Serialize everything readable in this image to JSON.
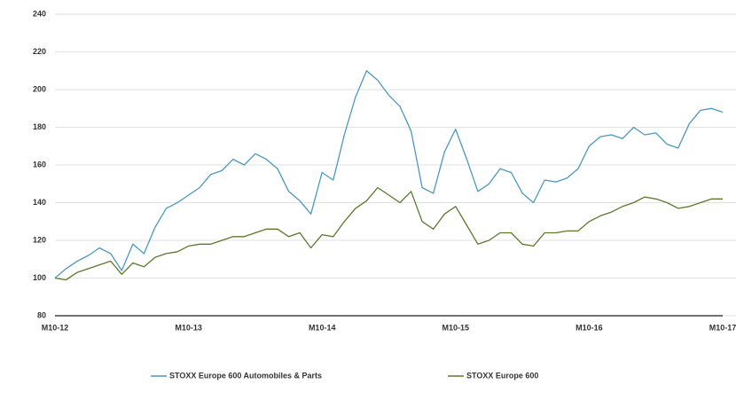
{
  "chart_data": {
    "type": "line",
    "categories": [
      "M10-12",
      null,
      null,
      null,
      null,
      null,
      null,
      null,
      null,
      null,
      null,
      null,
      "M10-13",
      null,
      null,
      null,
      null,
      null,
      null,
      null,
      null,
      null,
      null,
      null,
      "M10-14",
      null,
      null,
      null,
      null,
      null,
      null,
      null,
      null,
      null,
      null,
      null,
      "M10-15",
      null,
      null,
      null,
      null,
      null,
      null,
      null,
      null,
      null,
      null,
      null,
      "M10-16",
      null,
      null,
      null,
      null,
      null,
      null,
      null,
      null,
      null,
      null,
      null,
      "M10-17"
    ],
    "series": [
      {
        "name": "STOXX Europe 600 Automobiles & Parts",
        "color": "#4a98c0",
        "values": [
          100,
          105,
          109,
          112,
          116,
          113,
          104,
          118,
          113,
          127,
          137,
          140,
          144,
          148,
          155,
          157,
          163,
          160,
          166,
          163,
          158,
          146,
          141,
          134,
          156,
          152,
          176,
          196,
          210,
          205,
          197,
          191,
          178,
          148,
          145,
          167,
          179,
          163,
          146,
          150,
          158,
          156,
          145,
          140,
          152,
          151,
          153,
          158,
          170,
          175,
          176,
          174,
          180,
          176,
          177,
          171,
          169,
          182,
          189,
          190,
          188
        ]
      },
      {
        "name": "STOXX Europe 600",
        "color": "#5a7a2a",
        "values": [
          100,
          99,
          103,
          105,
          107,
          109,
          102,
          108,
          106,
          111,
          113,
          114,
          117,
          118,
          118,
          120,
          122,
          122,
          124,
          126,
          126,
          122,
          124,
          116,
          123,
          122,
          130,
          137,
          141,
          148,
          144,
          140,
          146,
          130,
          126,
          134,
          138,
          128,
          118,
          120,
          124,
          124,
          118,
          117,
          124,
          124,
          125,
          125,
          130,
          133,
          135,
          138,
          140,
          143,
          142,
          140,
          137,
          138,
          140,
          142,
          142
        ]
      }
    ],
    "ylim": [
      80,
      240
    ],
    "yticks": [
      80,
      100,
      120,
      140,
      160,
      180,
      200,
      220,
      240
    ],
    "grid": true
  }
}
